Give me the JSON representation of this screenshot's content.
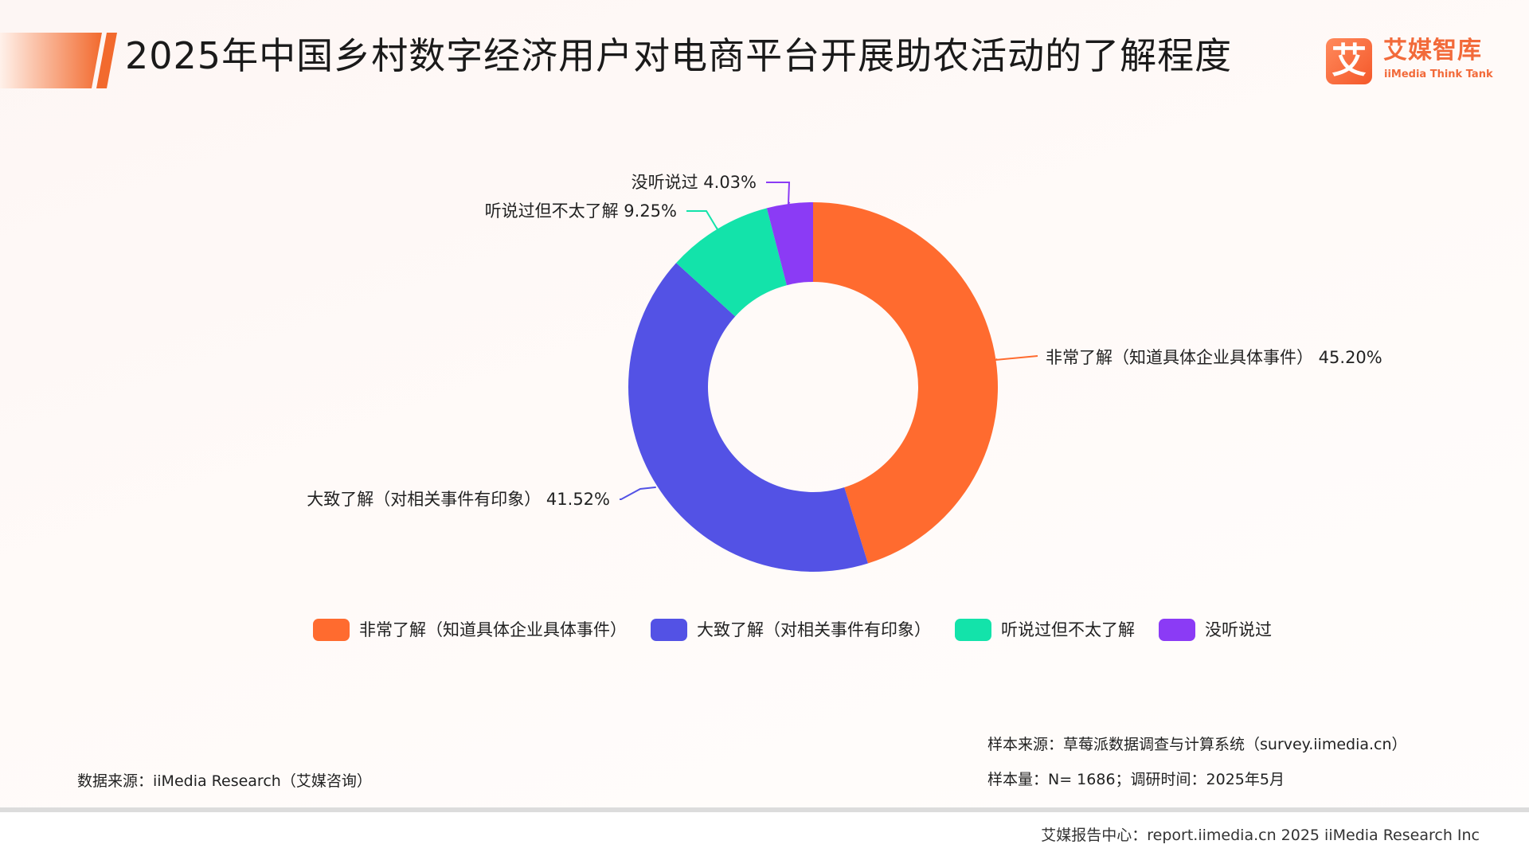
{
  "header": {
    "title": "2025年中国乡村数字经济用户对电商平台开展助农活动的了解程度"
  },
  "logo": {
    "mark": "艾",
    "name_cn": "艾媒智库",
    "name_en": "iiMedia Think Tank"
  },
  "chart_data": {
    "type": "pie",
    "donut": true,
    "categories": [
      "非常了解（知道具体企业具体事件）",
      "大致了解（对相关事件有印象）",
      "听说过但不太了解",
      "没听说过"
    ],
    "values": [
      45.2,
      41.52,
      9.25,
      4.03
    ],
    "value_labels": [
      "45.20%",
      "41.52%",
      "9.25%",
      "4.03%"
    ],
    "colors": [
      "#FF6B2F",
      "#5352E5",
      "#13E3AA",
      "#8B3BF5"
    ],
    "legend_position": "bottom",
    "start_angle": "top",
    "direction": "clockwise"
  },
  "notes": {
    "data_source": "数据来源：iiMedia Research（艾媒咨询）",
    "sample_source": "样本来源：草莓派数据调查与计算系统（survey.iimedia.cn）",
    "sample_size": "样本量：N= 1686；调研时间：2025年5月"
  },
  "footer": {
    "text": "艾媒报告中心：report.iimedia.cn    2025 iiMedia Research Inc"
  }
}
